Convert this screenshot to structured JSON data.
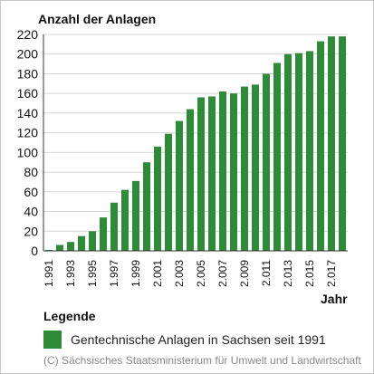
{
  "chart_data": {
    "type": "bar",
    "ylabel": "Anzahl der Anlagen",
    "xlabel": "Jahr",
    "ylim": [
      0,
      220
    ],
    "yticks": [
      0,
      20,
      40,
      60,
      80,
      100,
      120,
      140,
      160,
      180,
      200,
      220
    ],
    "categories": [
      "1991",
      "1992",
      "1993",
      "1994",
      "1995",
      "1996",
      "1997",
      "1998",
      "1999",
      "2000",
      "2001",
      "2002",
      "2003",
      "2004",
      "2005",
      "2006",
      "2007",
      "2008",
      "2009",
      "2010",
      "2011",
      "2012",
      "2013",
      "2014",
      "2015",
      "2016",
      "2017",
      "2018"
    ],
    "x_tick_labels": [
      "1.991",
      "",
      "1.993",
      "",
      "1.995",
      "",
      "1.997",
      "",
      "1.999",
      "",
      "2.001",
      "",
      "2.003",
      "",
      "2.005",
      "",
      "2.007",
      "",
      "2.009",
      "",
      "2.011",
      "",
      "2.013",
      "",
      "2.015",
      "",
      "2.017",
      ""
    ],
    "series": [
      {
        "name": "Gentechnische Anlagen in Sachsen seit 1991",
        "color": "#2e8b37",
        "values": [
          1,
          6,
          9,
          15,
          20,
          34,
          49,
          62,
          71,
          90,
          106,
          119,
          132,
          144,
          156,
          157,
          162,
          160,
          167,
          169,
          180,
          191,
          200,
          201,
          203,
          213,
          218,
          218
        ]
      }
    ],
    "grid": true,
    "legend": "bottom"
  },
  "legend": {
    "title": "Legende",
    "label": "Gentechnische Anlagen in Sachsen seit 1991"
  },
  "copyright": "(C) Sächsisches Staatsministerium für Umwelt und Landwirtschaft"
}
